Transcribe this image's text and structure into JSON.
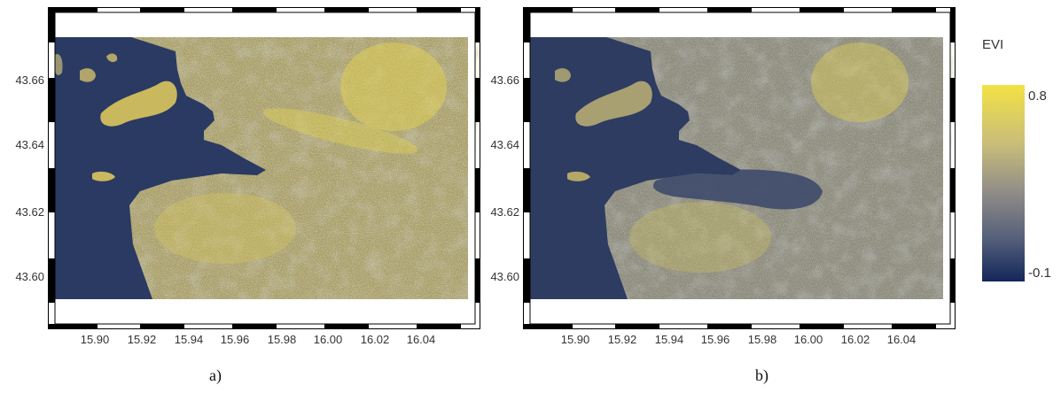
{
  "panels": [
    {
      "id": "a",
      "caption": "a)"
    },
    {
      "id": "b",
      "caption": "b)"
    }
  ],
  "axes": {
    "x_ticks": [
      "15.90",
      "15.92",
      "15.94",
      "15.96",
      "15.98",
      "16.00",
      "16.02",
      "16.04"
    ],
    "y_ticks": [
      "43.66",
      "43.64",
      "43.62",
      "43.60"
    ]
  },
  "legend": {
    "title": "EVI",
    "max_label": "0.8",
    "min_label": "-0.1",
    "colors": {
      "high": "#f2e244",
      "mid": "#8f8c87",
      "low": "#14265a"
    }
  }
}
